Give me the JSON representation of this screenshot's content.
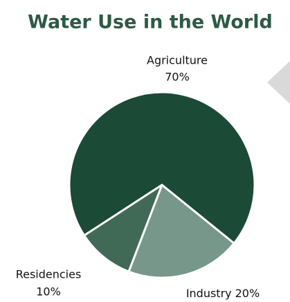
{
  "chart_data": {
    "type": "pie",
    "title": "Water Use in the World",
    "categories": [
      "Agriculture",
      "Industry",
      "Residencies"
    ],
    "values": [
      70,
      20,
      10
    ],
    "value_labels": [
      "70%",
      "20%",
      "10%"
    ],
    "colors": [
      "#1b4a36",
      "#76978a",
      "#406a56"
    ]
  }
}
